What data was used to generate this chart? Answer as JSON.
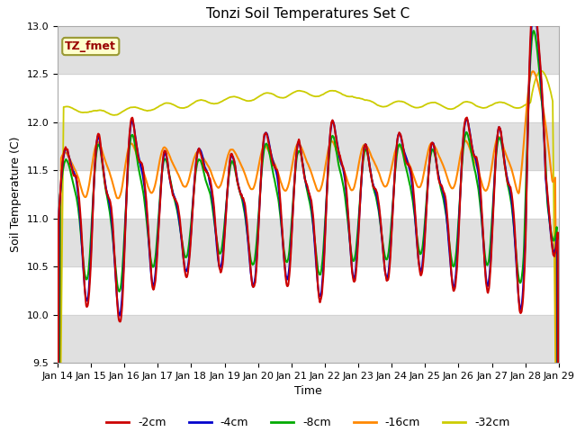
{
  "title": "Tonzi Soil Temperatures Set C",
  "xlabel": "Time",
  "ylabel": "Soil Temperature (C)",
  "ylim": [
    9.5,
    13.0
  ],
  "xlim": [
    0,
    15
  ],
  "xtick_labels": [
    "Jan 14",
    "Jan 15",
    "Jan 16",
    "Jan 17",
    "Jan 18",
    "Jan 19",
    "Jan 20",
    "Jan 21",
    "Jan 22",
    "Jan 23",
    "Jan 24",
    "Jan 25",
    "Jan 26",
    "Jan 27",
    "Jan 28",
    "Jan 29"
  ],
  "series_colors": [
    "#cc0000",
    "#0000cc",
    "#00aa00",
    "#ff8800",
    "#cccc00"
  ],
  "series_labels": [
    "-2cm",
    "-4cm",
    "-8cm",
    "-16cm",
    "-32cm"
  ],
  "annotation_label": "TZ_fmet",
  "annotation_color": "#990000",
  "annotation_bg": "#ffffcc",
  "annotation_edge": "#999933",
  "bg_stripe_color": "#e0e0e0",
  "title_fontsize": 11,
  "label_fontsize": 9,
  "tick_fontsize": 8,
  "legend_fontsize": 9
}
